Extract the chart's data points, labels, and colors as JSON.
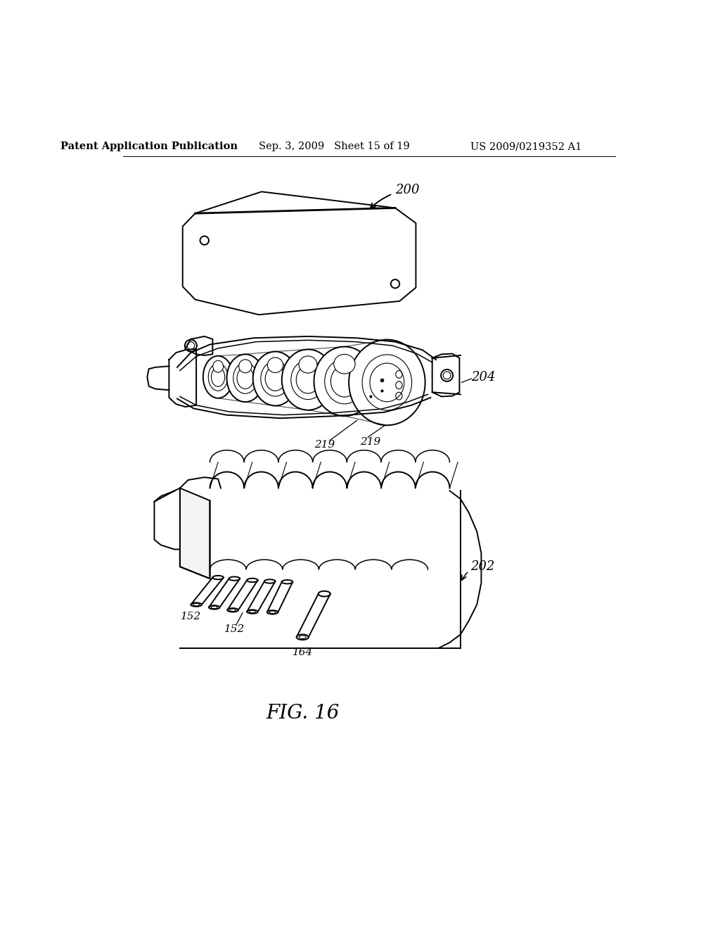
{
  "background_color": "#ffffff",
  "line_color": "#000000",
  "header_left": "Patent Application Publication",
  "header_center": "Sep. 3, 2009   Sheet 15 of 19",
  "header_right": "US 2009/0219352 A1",
  "figure_label": "FIG. 16",
  "label_200": "200",
  "label_204": "204",
  "label_219a": "219",
  "label_219b": "219",
  "label_152a": "152",
  "label_152b": "152",
  "label_164": "164",
  "label_202": "202",
  "header_fontsize": 10.5,
  "label_fontsize": 13,
  "small_label_fontsize": 11,
  "figure_fontsize": 20,
  "lw_main": 1.4,
  "lw_thin": 0.8,
  "lw_med": 1.1
}
